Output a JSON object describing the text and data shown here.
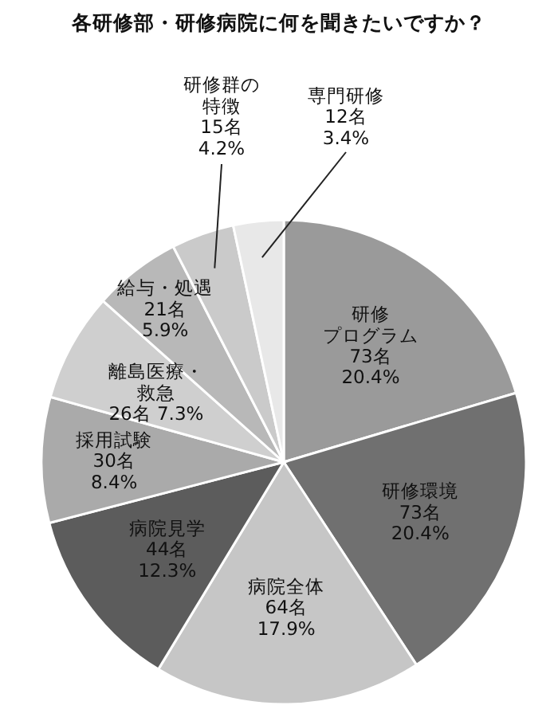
{
  "chart_data": {
    "type": "pie",
    "title": "各研修部・研修病院に何を聞きたいですか？",
    "categories": [
      "研修プログラム",
      "研修環境",
      "病院全体",
      "病院見学",
      "採用試験",
      "離島医療・救急",
      "給与・処遇",
      "研修群の特徴",
      "専門研修"
    ],
    "values": [
      73,
      73,
      64,
      44,
      30,
      26,
      21,
      15,
      12
    ],
    "value_labels": [
      "73名\n20.4%",
      "73名\n20.4%",
      "64名\n17.9%",
      "44名\n12.3%",
      "30名\n8.4%",
      "26名 7.3%",
      "21名\n5.9%",
      "15名\n4.2%",
      "12名\n3.4%"
    ],
    "colors": [
      "#9a9a9a",
      "#707070",
      "#c6c6c6",
      "#5c5c5c",
      "#aaaaaa",
      "#cfcfcf",
      "#b8b8b8",
      "#cacaca",
      "#e8e8e8"
    ]
  }
}
